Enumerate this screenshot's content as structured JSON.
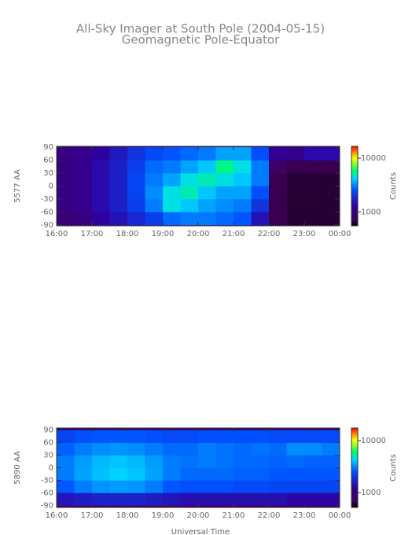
{
  "chart_data": [
    {
      "type": "heatmap",
      "title": "All-Sky Imager at South Pole (2004-05-15)",
      "subtitle": "Geomagnetic Pole-Equator",
      "ylabel": "5577 AA",
      "xlim": [
        16,
        24
      ],
      "xticks": [
        {
          "value": 16,
          "label": "16:00"
        },
        {
          "value": 17,
          "label": "17:00"
        },
        {
          "value": 18,
          "label": "18:00"
        },
        {
          "value": 19,
          "label": "19:00"
        },
        {
          "value": 20,
          "label": "20:00"
        },
        {
          "value": 21,
          "label": "21:00"
        },
        {
          "value": 22,
          "label": "22:00"
        },
        {
          "value": 23,
          "label": "23:00"
        },
        {
          "value": 24,
          "label": "00:00"
        }
      ],
      "ylim": [
        -92,
        92
      ],
      "yticks": [
        90,
        60,
        30,
        0,
        -30,
        -60,
        -90
      ],
      "x_bins": [
        16,
        16.5,
        17,
        17.5,
        18,
        18.5,
        19,
        19.5,
        20,
        20.5,
        21,
        21.5,
        22,
        22.5,
        23,
        23.5,
        24
      ],
      "y_bins": [
        -90,
        -60,
        -30,
        0,
        30,
        60,
        90
      ],
      "z": [
        [
          900,
          1000,
          1300,
          1500,
          1800,
          2200,
          2800,
          3000,
          3000,
          2800,
          2600,
          1500,
          700,
          650,
          650,
          650
        ],
        [
          1000,
          1100,
          1400,
          1700,
          2200,
          3000,
          4500,
          4000,
          3500,
          3200,
          3000,
          2000,
          700,
          650,
          650,
          650
        ],
        [
          1000,
          1100,
          1400,
          1700,
          2300,
          3200,
          4500,
          5000,
          4000,
          3500,
          3500,
          2500,
          700,
          650,
          650,
          650
        ],
        [
          1000,
          1100,
          1400,
          1700,
          2300,
          3000,
          3500,
          4500,
          5000,
          4500,
          4000,
          3000,
          700,
          650,
          650,
          650
        ],
        [
          1000,
          1100,
          1400,
          1700,
          2200,
          2800,
          3000,
          3500,
          4000,
          5500,
          4500,
          3000,
          800,
          700,
          700,
          700
        ],
        [
          1000,
          1100,
          1300,
          1600,
          2000,
          2400,
          2600,
          2800,
          3000,
          3500,
          3500,
          2500,
          1200,
          1100,
          1400,
          1400
        ]
      ],
      "colorbar": {
        "label": "Counts",
        "log": true,
        "clim": [
          550,
          16600
        ],
        "ticks": [
          1000,
          10000
        ]
      }
    },
    {
      "type": "heatmap",
      "ylabel": "5890 AA",
      "xlabel": "Universal Time",
      "xlim": [
        16,
        24
      ],
      "xticks": [
        {
          "value": 16,
          "label": "16:00"
        },
        {
          "value": 17,
          "label": "17:00"
        },
        {
          "value": 18,
          "label": "18:00"
        },
        {
          "value": 19,
          "label": "19:00"
        },
        {
          "value": 20,
          "label": "20:00"
        },
        {
          "value": 21,
          "label": "21:00"
        },
        {
          "value": 22,
          "label": "22:00"
        },
        {
          "value": 23,
          "label": "23:00"
        },
        {
          "value": 24,
          "label": "00:00"
        }
      ],
      "ylim": [
        -95,
        95
      ],
      "yticks": [
        90,
        60,
        30,
        0,
        -30,
        -60,
        -90
      ],
      "x_bins": [
        16,
        16.5,
        17,
        17.5,
        18,
        18.5,
        19,
        19.5,
        20,
        20.5,
        21,
        21.5,
        22,
        22.5,
        23,
        23.5,
        24
      ],
      "y_bins": [
        -90,
        -60,
        -30,
        0,
        30,
        60,
        90
      ],
      "z": [
        [
          1500,
          1600,
          1700,
          1700,
          1700,
          1600,
          1500,
          1400,
          1400,
          1400,
          1400,
          1400,
          1400,
          1300,
          1300,
          1300
        ],
        [
          2600,
          3000,
          3300,
          3400,
          3300,
          3000,
          2600,
          2500,
          2500,
          2500,
          2400,
          2400,
          2300,
          2300,
          2300,
          2300
        ],
        [
          3000,
          3500,
          3900,
          4200,
          4000,
          3500,
          3000,
          2800,
          2800,
          2800,
          2700,
          2700,
          2600,
          2600,
          2600,
          2600
        ],
        [
          3000,
          3400,
          3800,
          4000,
          3800,
          3400,
          3000,
          2900,
          3000,
          2900,
          2800,
          2800,
          2700,
          2800,
          2700,
          2700
        ],
        [
          2700,
          3000,
          3200,
          3300,
          3200,
          3000,
          2800,
          2800,
          3000,
          2900,
          2800,
          2900,
          2800,
          3200,
          3200,
          3000
        ],
        [
          2300,
          2500,
          2600,
          2600,
          2600,
          2500,
          2400,
          2400,
          2500,
          2500,
          2500,
          2500,
          2400,
          2400,
          2400,
          2400
        ]
      ],
      "colorbar": {
        "label": "Counts",
        "log": true,
        "clim": [
          520,
          17500
        ],
        "ticks": [
          1000,
          10000
        ]
      }
    }
  ]
}
